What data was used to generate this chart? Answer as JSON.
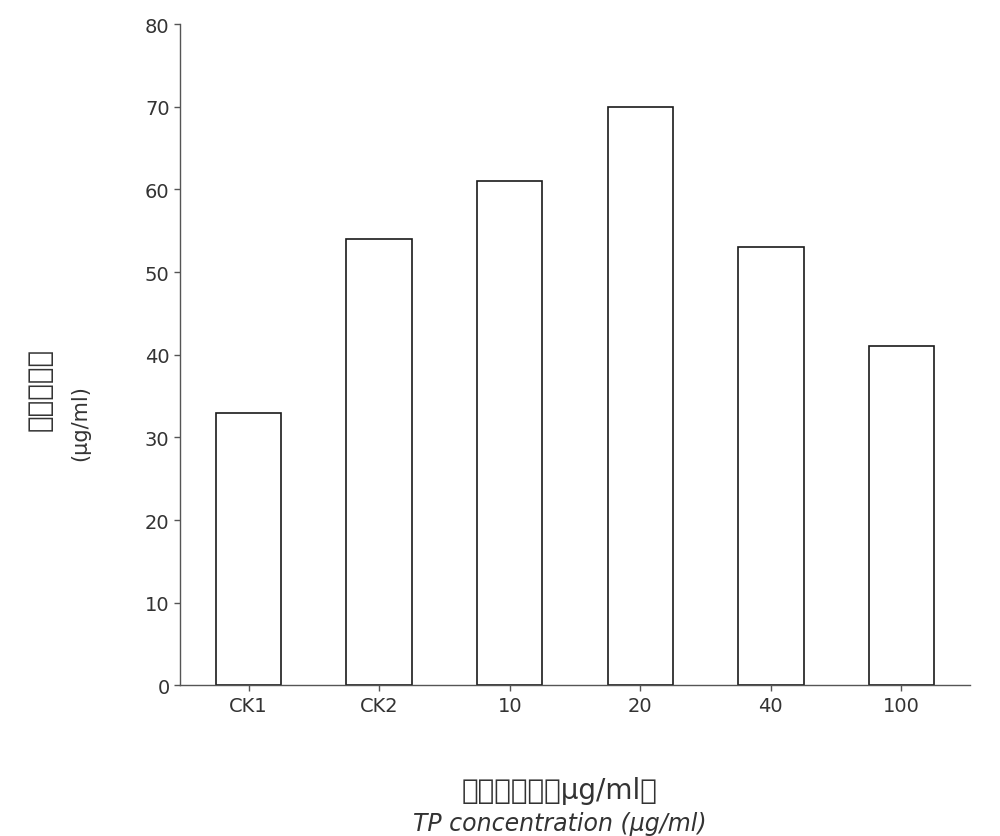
{
  "categories": [
    "CK1",
    "CK2",
    "10",
    "20",
    "40",
    "100"
  ],
  "values": [
    33,
    54,
    61,
    70,
    53,
    41
  ],
  "bar_color": "#ffffff",
  "bar_edge_color": "#1a1a1a",
  "bar_linewidth": 1.2,
  "bar_width": 0.5,
  "ylim": [
    0,
    80
  ],
  "yticks": [
    0,
    10,
    20,
    30,
    40,
    50,
    60,
    70,
    80
  ],
  "ylabel_chinese": "脌氨酸含量",
  "ylabel_unit": "(μg/ml)",
  "xlabel_chinese": "茶多酟浓度（μg/ml）",
  "xlabel_english": "TP concentration (μg/ml)",
  "background_color": "#ffffff",
  "tick_fontsize": 14,
  "xlabel_fontsize_chinese": 20,
  "xlabel_fontsize_english": 17,
  "ylabel_fontsize_chinese": 20,
  "ylabel_fontsize_unit": 15,
  "spine_color": "#555555",
  "tick_color": "#555555"
}
